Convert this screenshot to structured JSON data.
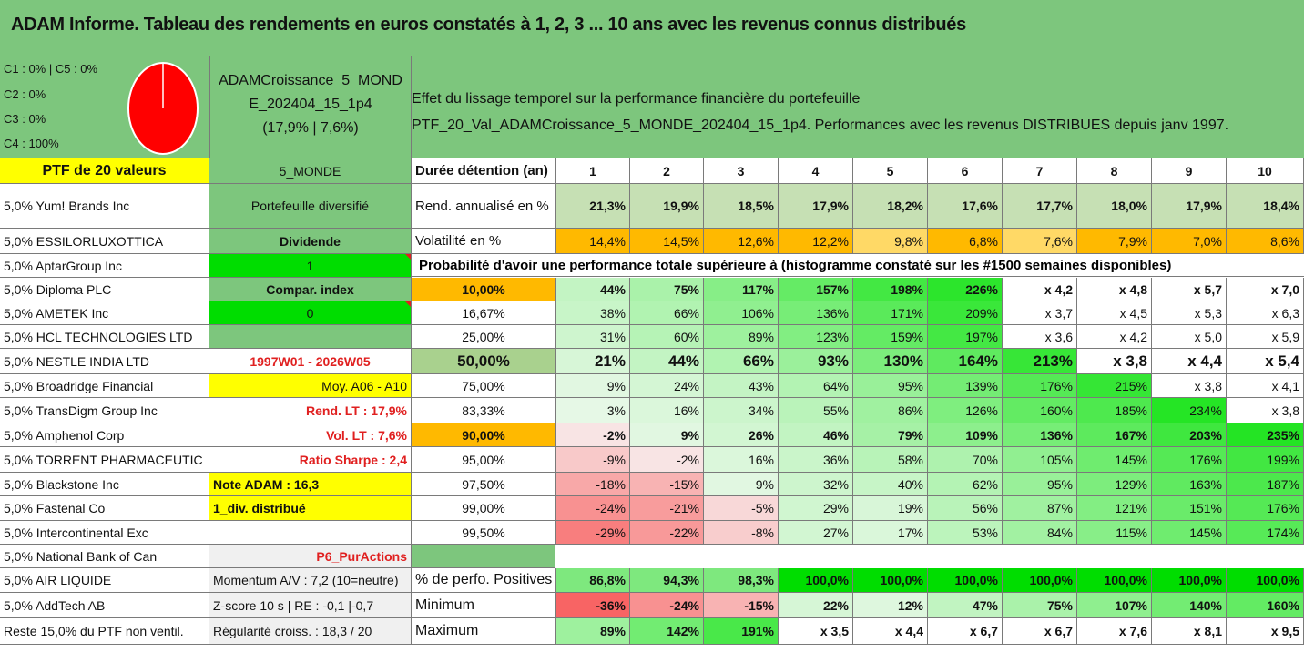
{
  "title": "ADAM Informe. Tableau des rendements en euros constatés à 1, 2, 3 ... 10 ans avec les revenus connus distribués",
  "legend": [
    "C1 : 0% | C5 : 0%",
    "C2 : 0%",
    "C3 : 0%",
    "C4 : 100%"
  ],
  "pie_color": "#ff0000",
  "portfolio": {
    "line1": "ADAMCroissance_5_MOND",
    "line2": "E_202404_15_1p4",
    "line3": "(17,9% | 7,6%)"
  },
  "effet": {
    "line1": "Effet du lissage temporel sur la performance financière du portefeuille",
    "line2": "PTF_20_Val_ADAMCroissance_5_MONDE_202404_15_1p4. Performances avec les revenus DISTRIBUES depuis janv 1997."
  },
  "ptf_label": "PTF de 20 valeurs",
  "category": "5_MONDE",
  "holdings": [
    "5,0% Yum! Brands Inc",
    "5,0% ESSILORLUXOTTICA",
    "5,0% AptarGroup Inc",
    "5,0% Diploma PLC",
    "5,0% AMETEK Inc",
    "5,0% HCL TECHNOLOGIES LTD",
    "5,0% NESTLE INDIA LTD",
    "5,0% Broadridge Financial",
    "5,0% TransDigm Group Inc",
    "5,0% Amphenol Corp",
    "5,0% TORRENT PHARMACEUTIC",
    "5,0% Blackstone Inc",
    "5,0% Fastenal Co",
    "5,0% Intercontinental Exc",
    "5,0% National Bank of Can",
    "5,0% AIR LIQUIDE",
    "5,0% AddTech AB",
    "Reste 15,0% du PTF non ventil."
  ],
  "infos": {
    "diversif": "Portefeuille diversifié",
    "dividende": "Dividende",
    "one": "1",
    "compar": "Compar. index",
    "zero": "0",
    "period": "1997W01 - 2026W05",
    "moy": "Moy. A06 - A10",
    "rend_lt": "Rend. LT : 17,9%",
    "vol_lt": "Vol. LT : 7,6%",
    "sharpe": "Ratio Sharpe : 2,4",
    "note": "Note ADAM : 16,3",
    "div": "1_div. distribué",
    "p6": "P6_PurActions",
    "momentum": "Momentum A/V : 7,2 (10=neutre)",
    "zscore": "Z-score 10 s | RE : -0,1 |-0,7",
    "regul": "Régularité croiss. : 18,3 / 20"
  },
  "duree_label": "Durée détention (an)",
  "years": [
    "1",
    "2",
    "3",
    "4",
    "5",
    "6",
    "7",
    "8",
    "9",
    "10"
  ],
  "rend_label": "Rend. annualisé en %",
  "rend": [
    "21,3%",
    "19,9%",
    "18,5%",
    "17,9%",
    "18,2%",
    "17,6%",
    "17,7%",
    "18,0%",
    "17,9%",
    "18,4%"
  ],
  "vol_label": "Volatilité en %",
  "vol": [
    "14,4%",
    "14,5%",
    "12,6%",
    "12,2%",
    "9,8%",
    "6,8%",
    "7,6%",
    "7,9%",
    "7,0%",
    "8,6%"
  ],
  "prob_header": "Probabilité d'avoir une performance totale supérieure à (histogramme constaté sur les #1500 semaines disponibles)",
  "prob_rows": [
    {
      "p": "10,00%",
      "v": [
        "44%",
        "75%",
        "117%",
        "157%",
        "198%",
        "226%",
        "x 4,2",
        "x 4,8",
        "x 5,7",
        "x 7,0"
      ]
    },
    {
      "p": "16,67%",
      "v": [
        "38%",
        "66%",
        "106%",
        "136%",
        "171%",
        "209%",
        "x 3,7",
        "x 4,5",
        "x 5,3",
        "x 6,3"
      ]
    },
    {
      "p": "25,00%",
      "v": [
        "31%",
        "60%",
        "89%",
        "123%",
        "159%",
        "197%",
        "x 3,6",
        "x 4,2",
        "x 5,0",
        "x 5,9"
      ]
    },
    {
      "p": "50,00%",
      "v": [
        "21%",
        "44%",
        "66%",
        "93%",
        "130%",
        "164%",
        "213%",
        "x 3,8",
        "x 4,4",
        "x 5,4"
      ]
    },
    {
      "p": "75,00%",
      "v": [
        "9%",
        "24%",
        "43%",
        "64%",
        "95%",
        "139%",
        "176%",
        "215%",
        "x 3,8",
        "x 4,1"
      ]
    },
    {
      "p": "83,33%",
      "v": [
        "3%",
        "16%",
        "34%",
        "55%",
        "86%",
        "126%",
        "160%",
        "185%",
        "234%",
        "x 3,8"
      ]
    },
    {
      "p": "90,00%",
      "v": [
        "-2%",
        "9%",
        "26%",
        "46%",
        "79%",
        "109%",
        "136%",
        "167%",
        "203%",
        "235%"
      ]
    },
    {
      "p": "95,00%",
      "v": [
        "-9%",
        "-2%",
        "16%",
        "36%",
        "58%",
        "70%",
        "105%",
        "145%",
        "176%",
        "199%"
      ]
    },
    {
      "p": "97,50%",
      "v": [
        "-18%",
        "-15%",
        "9%",
        "32%",
        "40%",
        "62%",
        "95%",
        "129%",
        "163%",
        "187%"
      ]
    },
    {
      "p": "99,00%",
      "v": [
        "-24%",
        "-21%",
        "-5%",
        "29%",
        "19%",
        "56%",
        "87%",
        "121%",
        "151%",
        "176%"
      ]
    },
    {
      "p": "99,50%",
      "v": [
        "-29%",
        "-22%",
        "-8%",
        "27%",
        "17%",
        "53%",
        "84%",
        "115%",
        "145%",
        "174%"
      ]
    }
  ],
  "pos_label": "% de perfo. Positives",
  "pos": [
    "86,8%",
    "94,3%",
    "98,3%",
    "100,0%",
    "100,0%",
    "100,0%",
    "100,0%",
    "100,0%",
    "100,0%",
    "100,0%"
  ],
  "min_label": "Minimum",
  "min": [
    "-36%",
    "-24%",
    "-15%",
    "22%",
    "12%",
    "47%",
    "75%",
    "107%",
    "140%",
    "160%"
  ],
  "max_label": "Maximum",
  "max": [
    "89%",
    "142%",
    "191%",
    "x 3,5",
    "x 4,4",
    "x 6,7",
    "x 6,7",
    "x 7,6",
    "x 8,1",
    "x 9,5"
  ],
  "colors": {
    "header_green": "#7dc67d",
    "bright_green": "#00dd00",
    "yellow": "#ffff00",
    "orange": "#ffb900",
    "red_text": "#e02020",
    "pale_green": "#c6e0b4"
  }
}
